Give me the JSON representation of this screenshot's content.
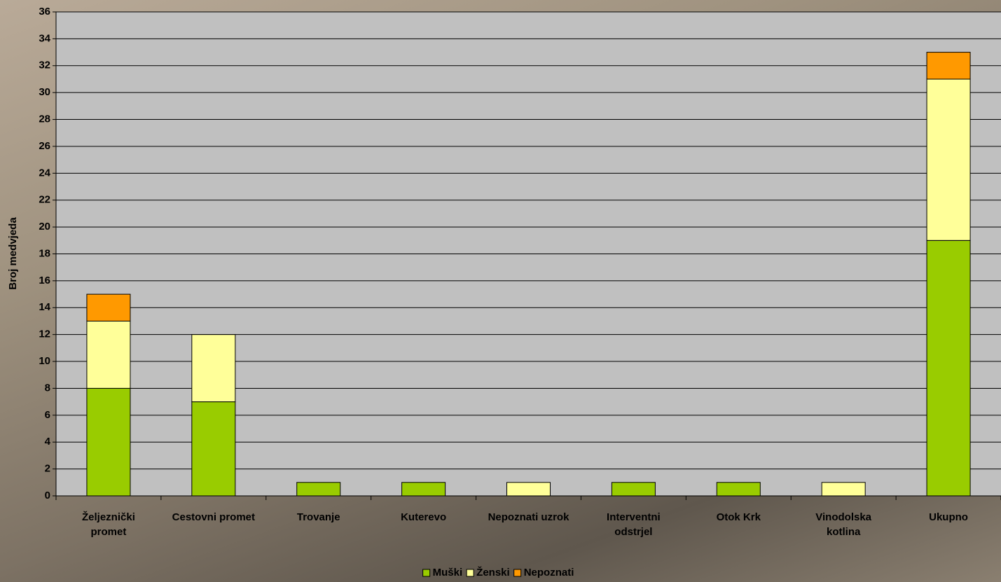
{
  "chart_data": {
    "type": "stacked_bar",
    "y_axis_label": "Broj medvjeda",
    "categories": [
      "Željeznički promet",
      "Cestovni promet",
      "Trovanje",
      "Kuterevo",
      "Nepoznati uzrok",
      "Interventni odstrjel",
      "Otok Krk",
      "Vinodolska kotlina",
      "Ukupno"
    ],
    "series": [
      {
        "name": "Muški",
        "color": "#99cc00",
        "values": [
          8,
          7,
          1,
          1,
          0,
          1,
          1,
          0,
          19
        ]
      },
      {
        "name": "Ženski",
        "color": "#ffff99",
        "values": [
          5,
          5,
          0,
          0,
          1,
          0,
          0,
          1,
          12
        ]
      },
      {
        "name": "Nepoznati",
        "color": "#ff9900",
        "values": [
          2,
          0,
          0,
          0,
          0,
          0,
          0,
          0,
          2
        ]
      }
    ],
    "ylim": [
      0,
      36
    ],
    "yticks": [
      0,
      2,
      4,
      6,
      8,
      10,
      12,
      14,
      16,
      18,
      20,
      22,
      24,
      26,
      28,
      30,
      32,
      34,
      36
    ],
    "grid": true,
    "legend": "bottom"
  }
}
